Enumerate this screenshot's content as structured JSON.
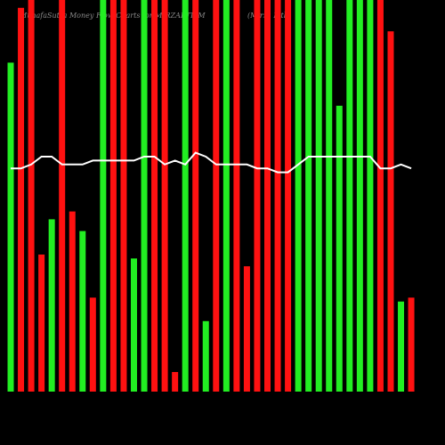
{
  "chart_data": {
    "type": "bar",
    "title": "MunafaSutra Money Flow Charts for MIRZAINT_M",
    "subtitle": "(Mirza Intl)",
    "values": [
      84,
      98,
      100,
      35,
      44,
      100,
      46,
      41,
      24,
      100,
      100,
      100,
      34,
      100,
      100,
      100,
      5,
      100,
      100,
      18,
      100,
      100,
      100,
      32,
      100,
      100,
      100,
      100,
      100,
      100,
      100,
      100,
      73,
      100,
      100,
      100,
      100,
      92,
      23,
      24
    ],
    "colors": [
      "#22ee22",
      "#ff1111",
      "#ff1111",
      "#ff1111",
      "#22ee22",
      "#ff1111",
      "#ff1111",
      "#22ee22",
      "#ff1111",
      "#22ee22",
      "#ff1111",
      "#ff1111",
      "#22ee22",
      "#22ee22",
      "#ff1111",
      "#ff1111",
      "#ff1111",
      "#22ee22",
      "#ff1111",
      "#22ee22",
      "#ff1111",
      "#22ee22",
      "#ff1111",
      "#ff1111",
      "#ff1111",
      "#ff1111",
      "#ff1111",
      "#ff1111",
      "#22ee22",
      "#22ee22",
      "#22ee22",
      "#22ee22",
      "#22ee22",
      "#22ee22",
      "#22ee22",
      "#22ee22",
      "#ff1111",
      "#ff1111",
      "#22ee22",
      "#ff1111"
    ],
    "line_values": [
      57,
      57,
      58,
      60,
      60,
      58,
      58,
      58,
      59,
      59,
      59,
      59,
      59,
      60,
      60,
      58,
      59,
      58,
      61,
      60,
      58,
      58,
      58,
      58,
      57,
      57,
      56,
      56,
      58,
      60,
      60,
      60,
      60,
      60,
      60,
      60,
      57,
      57,
      58,
      57
    ],
    "line_color": "#ffffff",
    "ylim": [
      0,
      100
    ]
  }
}
